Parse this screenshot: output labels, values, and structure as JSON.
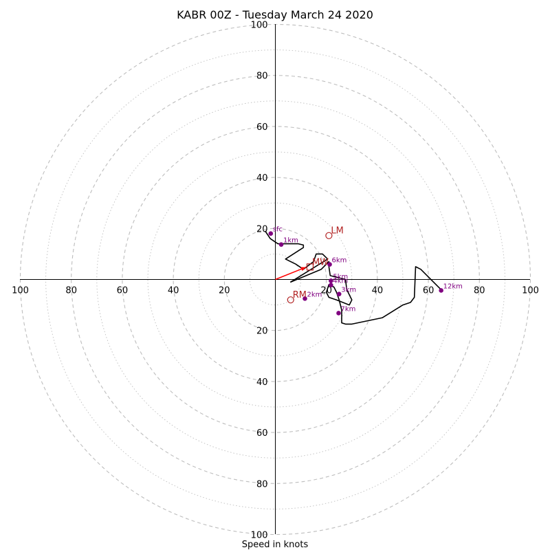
{
  "chart_data": {
    "type": "hodograph",
    "title": "KABR 00Z - Tuesday March 24 2020",
    "xlabel": "Speed in knots",
    "max_speed": 100,
    "ring_step_minor": 10,
    "ring_step_major": 20,
    "tick_labels": {
      "left": [
        "100",
        "80",
        "60",
        "40",
        "20"
      ],
      "right": [
        "20",
        "40",
        "60",
        "80",
        "100"
      ],
      "top": [
        "100",
        "80",
        "60",
        "40",
        "20"
      ],
      "bottom": [
        "20",
        "40",
        "60",
        "80",
        "100"
      ]
    },
    "hodograph_line": {
      "color": "#000000",
      "points": [
        [
          -4,
          19
        ],
        [
          -2,
          16
        ],
        [
          1,
          14
        ],
        [
          9,
          14
        ],
        [
          11,
          13.5
        ],
        [
          11,
          12.5
        ],
        [
          4,
          8
        ],
        [
          8,
          6
        ],
        [
          11,
          4
        ],
        [
          15,
          7
        ],
        [
          16,
          10
        ],
        [
          18.5,
          10
        ],
        [
          20.5,
          8
        ],
        [
          6,
          -1
        ],
        [
          18,
          4
        ],
        [
          21,
          7
        ],
        [
          21,
          5
        ],
        [
          21.5,
          1.5
        ],
        [
          27.5,
          0
        ],
        [
          28,
          -4
        ],
        [
          30,
          -8
        ],
        [
          29,
          -10
        ],
        [
          24,
          -8
        ],
        [
          21,
          -7
        ],
        [
          20,
          -5
        ],
        [
          21,
          -2
        ],
        [
          23,
          -3
        ],
        [
          24,
          -5
        ],
        [
          25,
          -8
        ],
        [
          26,
          -12
        ],
        [
          26,
          -17
        ],
        [
          27.5,
          -17.5
        ],
        [
          30,
          -17.5
        ],
        [
          42,
          -15
        ],
        [
          50,
          -10
        ],
        [
          53,
          -9
        ],
        [
          54.5,
          -7
        ],
        [
          55,
          5
        ],
        [
          57,
          4
        ],
        [
          60,
          1
        ],
        [
          63,
          -2
        ],
        [
          65,
          -4
        ]
      ]
    },
    "height_markers": {
      "color": "#800080",
      "points": [
        {
          "label": "sfc",
          "u": -1.8,
          "v": 18
        },
        {
          "label": "1km",
          "u": 2.3,
          "v": 13.7
        },
        {
          "label": "2km",
          "u": 11.6,
          "v": -7.5
        },
        {
          "label": "3km",
          "u": 25,
          "v": -5.7
        },
        {
          "label": "4km",
          "u": 21.8,
          "v": -2.2
        },
        {
          "label": "5km",
          "u": 21.8,
          "v": -0.5
        },
        {
          "label": "6km",
          "u": 21.3,
          "v": 5.9
        },
        {
          "label": "7km",
          "u": 24.8,
          "v": -13.2
        },
        {
          "label": "12km",
          "u": 65,
          "v": -4.3
        }
      ]
    },
    "storm_motion": {
      "color": "#b22222",
      "points": [
        {
          "label": "LM",
          "u": 21,
          "v": 17.2,
          "shape": "circle"
        },
        {
          "label": "RM",
          "u": 6,
          "v": -8,
          "shape": "circle"
        },
        {
          "label": "MW",
          "u": 13.6,
          "v": 4.9,
          "shape": "square"
        }
      ]
    },
    "mean_wind_vector": {
      "color": "#ff0000",
      "from": [
        0,
        0
      ],
      "to": [
        12,
        4.8
      ]
    }
  }
}
